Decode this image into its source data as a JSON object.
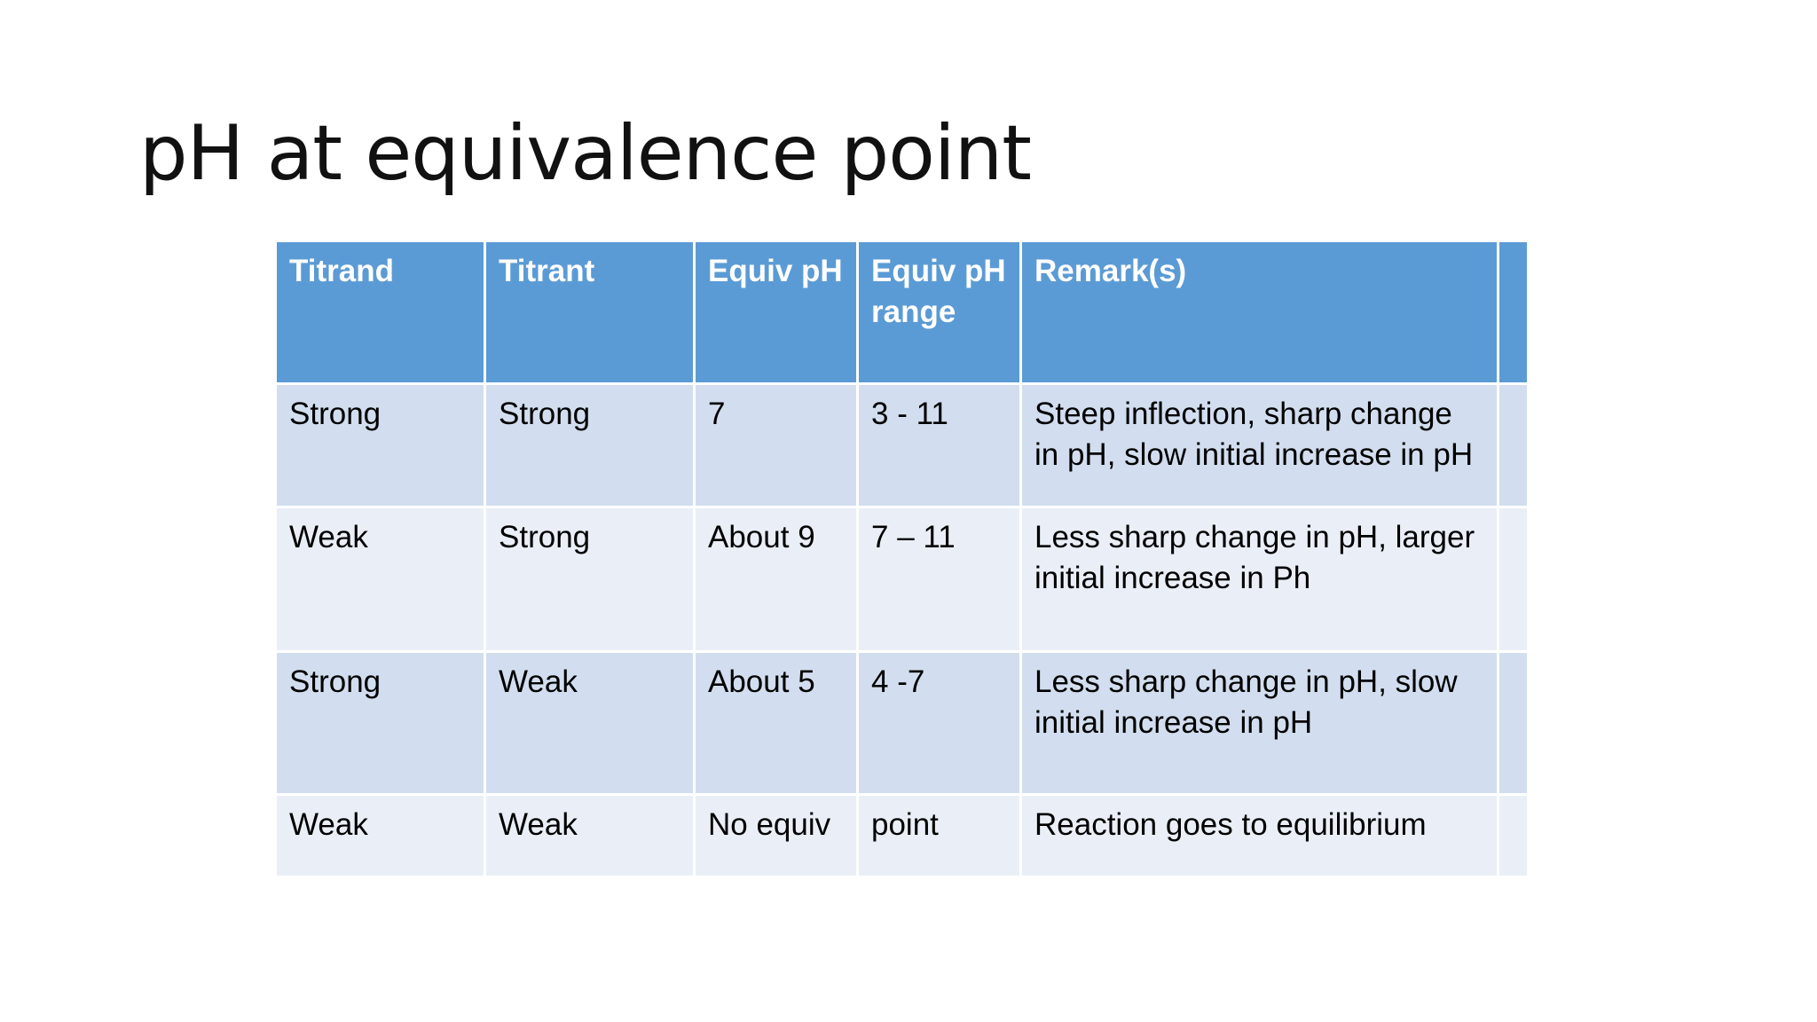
{
  "slide": {
    "title": "pH at equivalence point"
  },
  "table": {
    "headers": [
      "Titrand",
      "Titrant",
      "Equiv pH",
      "Equiv pH range",
      "Remark(s)",
      ""
    ],
    "rows": [
      [
        "Strong",
        "Strong",
        "7",
        "3 - 11",
        "Steep inflection, sharp change in pH, slow initial increase in pH",
        ""
      ],
      [
        "Weak",
        "Strong",
        "About 9",
        "7 – 11",
        "Less sharp change in pH, larger initial increase in Ph",
        ""
      ],
      [
        "Strong",
        "Weak",
        "About 5",
        "4 -7",
        "Less sharp change in pH, slow initial increase in pH",
        ""
      ],
      [
        "Weak",
        "Weak",
        "No equiv",
        "point",
        "Reaction goes to equilibrium",
        ""
      ]
    ]
  },
  "colors": {
    "header_bg": "#5b9bd5",
    "row_dark_bg": "#d2deef",
    "row_light_bg": "#eaeff7"
  }
}
